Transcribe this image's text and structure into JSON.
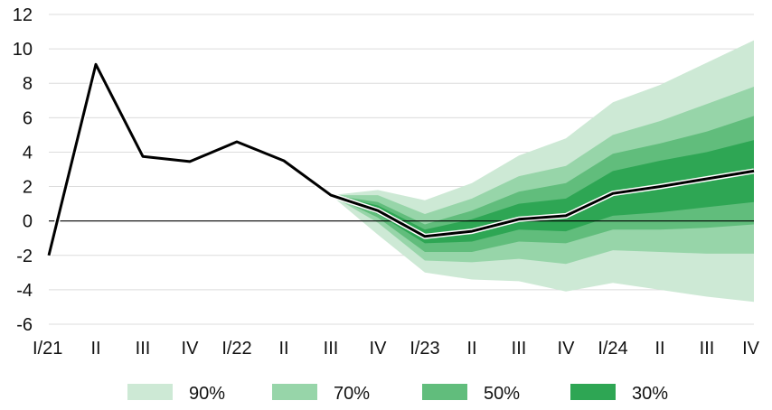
{
  "chart_data": {
    "type": "area",
    "title": "",
    "xlabel": "",
    "ylabel": "",
    "ylim": [
      -6,
      12
    ],
    "yticks": [
      -6,
      -4,
      -2,
      0,
      2,
      4,
      6,
      8,
      10,
      12
    ],
    "grid": "horizontal",
    "legend_position": "bottom",
    "categories": [
      "I/21",
      "II",
      "III",
      "IV",
      "I/22",
      "II",
      "III",
      "IV",
      "I/23",
      "II",
      "III",
      "IV",
      "I/24",
      "II",
      "III",
      "IV"
    ],
    "series": [
      {
        "name": "",
        "type": "line",
        "color": "#000000",
        "values": [
          -2.0,
          9.1,
          3.75,
          3.45,
          4.6,
          3.5,
          1.5,
          0.6,
          -0.9,
          -0.6,
          0.1,
          0.3,
          1.6,
          2.0,
          2.45,
          2.9
        ]
      }
    ],
    "fan_start_index": 6,
    "fan_bands": [
      {
        "name": "90%",
        "color": "#cde9d5",
        "lower": [
          1.5,
          -0.8,
          -3.0,
          -3.4,
          -3.5,
          -4.1,
          -3.6,
          -4.0,
          -4.4,
          -4.7
        ],
        "upper": [
          1.5,
          1.8,
          1.2,
          2.2,
          3.8,
          4.8,
          6.9,
          7.9,
          9.2,
          10.5
        ]
      },
      {
        "name": "70%",
        "color": "#97d5a9",
        "lower": [
          1.5,
          -0.1,
          -2.3,
          -2.4,
          -2.2,
          -2.5,
          -1.7,
          -1.8,
          -1.9,
          -1.9
        ],
        "upper": [
          1.5,
          1.5,
          0.4,
          1.3,
          2.6,
          3.2,
          5.0,
          5.8,
          6.8,
          7.8
        ]
      },
      {
        "name": "50%",
        "color": "#61bd7c",
        "lower": [
          1.5,
          0.2,
          -1.8,
          -1.8,
          -1.2,
          -1.3,
          -0.5,
          -0.5,
          -0.4,
          -0.2
        ],
        "upper": [
          1.5,
          1.1,
          -0.2,
          0.6,
          1.7,
          2.2,
          3.9,
          4.5,
          5.2,
          6.1
        ]
      },
      {
        "name": "30%",
        "color": "#2ea654",
        "lower": [
          1.5,
          0.4,
          -1.3,
          -1.2,
          -0.5,
          -0.6,
          0.3,
          0.5,
          0.8,
          1.1
        ],
        "upper": [
          1.5,
          0.9,
          -0.5,
          0.1,
          1.0,
          1.3,
          2.9,
          3.5,
          4.0,
          4.7
        ]
      }
    ]
  }
}
